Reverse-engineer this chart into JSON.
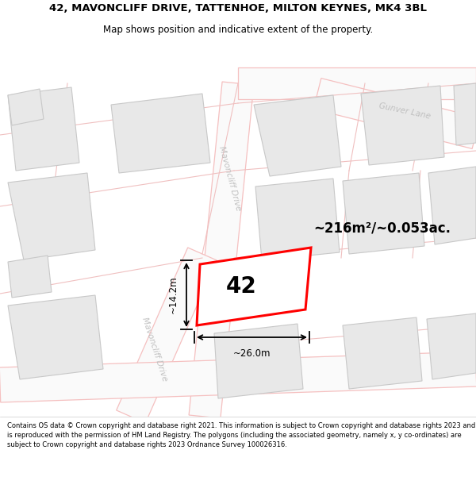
{
  "title_line1": "42, MAVONCLIFF DRIVE, TATTENHOE, MILTON KEYNES, MK4 3BL",
  "title_line2": "Map shows position and indicative extent of the property.",
  "footer_text": "Contains OS data © Crown copyright and database right 2021. This information is subject to Crown copyright and database rights 2023 and is reproduced with the permission of HM Land Registry. The polygons (including the associated geometry, namely x, y co-ordinates) are subject to Crown copyright and database rights 2023 Ordnance Survey 100026316.",
  "map_bg": "#ffffff",
  "road_stroke": "#f5c0c0",
  "road_fill": "#ffffff",
  "plot_stroke": "#f0c0c0",
  "building_fill": "#e8e8e8",
  "building_edge": "#c8c8c8",
  "highlight_color": "#ff0000",
  "text_gray": "#c0c0c0",
  "area_text": "~216m²/~0.053ac.",
  "number_label": "42",
  "dim_width": "~26.0m",
  "dim_height": "~14.2m",
  "road_label_upper": "Mavoncliff Drive",
  "road_label_lower": "Mavoncliff Drive",
  "road_label_top": "Gunver Lane"
}
